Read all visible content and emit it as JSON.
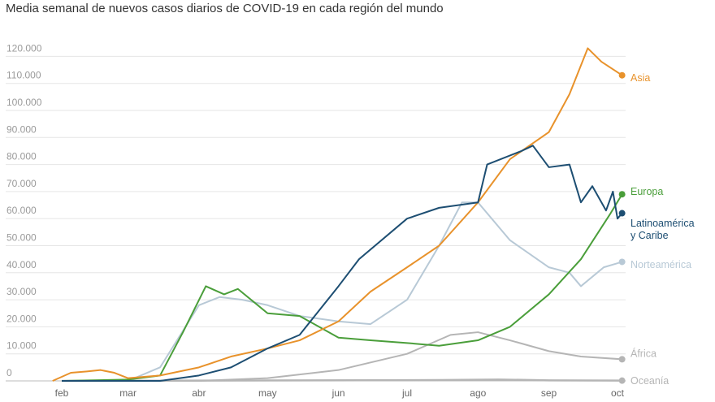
{
  "chart_data": {
    "type": "line",
    "title": "Media semanal de nuevos casos diarios de COVID-19 en cada región del mundo",
    "xlabel": "",
    "ylabel": "",
    "ylim": [
      0,
      125000
    ],
    "yticks": [
      0,
      10000,
      20000,
      30000,
      40000,
      50000,
      60000,
      70000,
      80000,
      90000,
      100000,
      110000,
      120000
    ],
    "ytick_labels": [
      "0",
      "10.000",
      "20.000",
      "30.000",
      "40.000",
      "50.000",
      "60.000",
      "70.000",
      "80.000",
      "90.000",
      "100.000",
      "110.000",
      "120.000"
    ],
    "xtick_labels": [
      "feb",
      "mar",
      "abr",
      "may",
      "jun",
      "jul",
      "ago",
      "sep",
      "oct"
    ],
    "xticks": [
      "2020-02-01",
      "2020-03-01",
      "2020-04-01",
      "2020-05-01",
      "2020-06-01",
      "2020-07-01",
      "2020-08-01",
      "2020-09-01",
      "2020-10-01"
    ],
    "grid": true,
    "legend": "end-of-line labels",
    "series": [
      {
        "name": "Asia",
        "color": "#e8922b",
        "points": [
          [
            "2020-01-28",
            0
          ],
          [
            "2020-02-05",
            3000
          ],
          [
            "2020-02-12",
            3500
          ],
          [
            "2020-02-18",
            4000
          ],
          [
            "2020-02-24",
            3000
          ],
          [
            "2020-03-01",
            1000
          ],
          [
            "2020-03-15",
            2000
          ],
          [
            "2020-04-01",
            5000
          ],
          [
            "2020-04-15",
            9000
          ],
          [
            "2020-05-01",
            12000
          ],
          [
            "2020-05-15",
            15000
          ],
          [
            "2020-06-01",
            22000
          ],
          [
            "2020-06-15",
            33000
          ],
          [
            "2020-07-01",
            42000
          ],
          [
            "2020-07-15",
            50000
          ],
          [
            "2020-08-01",
            66000
          ],
          [
            "2020-08-15",
            82000
          ],
          [
            "2020-09-01",
            92000
          ],
          [
            "2020-09-10",
            106000
          ],
          [
            "2020-09-18",
            123000
          ],
          [
            "2020-09-24",
            118000
          ],
          [
            "2020-10-03",
            113000
          ]
        ]
      },
      {
        "name": "Europa",
        "color": "#4a9e3a",
        "points": [
          [
            "2020-02-01",
            0
          ],
          [
            "2020-03-01",
            500
          ],
          [
            "2020-03-15",
            2000
          ],
          [
            "2020-03-25",
            18000
          ],
          [
            "2020-04-04",
            35000
          ],
          [
            "2020-04-12",
            32000
          ],
          [
            "2020-04-18",
            34000
          ],
          [
            "2020-05-01",
            25000
          ],
          [
            "2020-05-15",
            24000
          ],
          [
            "2020-06-01",
            16000
          ],
          [
            "2020-06-15",
            15000
          ],
          [
            "2020-07-01",
            14000
          ],
          [
            "2020-07-15",
            13000
          ],
          [
            "2020-08-01",
            15000
          ],
          [
            "2020-08-15",
            20000
          ],
          [
            "2020-09-01",
            32000
          ],
          [
            "2020-09-15",
            45000
          ],
          [
            "2020-09-28",
            62000
          ],
          [
            "2020-10-03",
            69000
          ]
        ]
      },
      {
        "name": "Latinoamérica y Caribe",
        "color": "#1d4e72",
        "points": [
          [
            "2020-02-01",
            0
          ],
          [
            "2020-03-15",
            0
          ],
          [
            "2020-04-01",
            2000
          ],
          [
            "2020-04-15",
            5000
          ],
          [
            "2020-05-01",
            12000
          ],
          [
            "2020-05-15",
            17000
          ],
          [
            "2020-06-01",
            35000
          ],
          [
            "2020-06-10",
            45000
          ],
          [
            "2020-07-01",
            60000
          ],
          [
            "2020-07-15",
            64000
          ],
          [
            "2020-08-01",
            66000
          ],
          [
            "2020-08-05",
            80000
          ],
          [
            "2020-08-20",
            85000
          ],
          [
            "2020-08-25",
            87000
          ],
          [
            "2020-09-01",
            79000
          ],
          [
            "2020-09-10",
            80000
          ],
          [
            "2020-09-15",
            66000
          ],
          [
            "2020-09-20",
            72000
          ],
          [
            "2020-09-26",
            63000
          ],
          [
            "2020-09-29",
            70000
          ],
          [
            "2020-10-01",
            60000
          ],
          [
            "2020-10-03",
            62000
          ]
        ]
      },
      {
        "name": "Norteamérica",
        "color": "#b8c9d6",
        "points": [
          [
            "2020-02-01",
            0
          ],
          [
            "2020-03-01",
            0
          ],
          [
            "2020-03-15",
            5000
          ],
          [
            "2020-04-01",
            28000
          ],
          [
            "2020-04-10",
            31000
          ],
          [
            "2020-04-20",
            30000
          ],
          [
            "2020-05-01",
            28000
          ],
          [
            "2020-05-15",
            24000
          ],
          [
            "2020-06-01",
            22000
          ],
          [
            "2020-06-15",
            21000
          ],
          [
            "2020-07-01",
            30000
          ],
          [
            "2020-07-15",
            50000
          ],
          [
            "2020-07-25",
            66000
          ],
          [
            "2020-08-01",
            66000
          ],
          [
            "2020-08-15",
            52000
          ],
          [
            "2020-09-01",
            42000
          ],
          [
            "2020-09-10",
            40000
          ],
          [
            "2020-09-15",
            35000
          ],
          [
            "2020-09-25",
            42000
          ],
          [
            "2020-10-03",
            44000
          ]
        ]
      },
      {
        "name": "África",
        "color": "#b5b5b5",
        "points": [
          [
            "2020-02-01",
            0
          ],
          [
            "2020-04-01",
            0
          ],
          [
            "2020-05-01",
            1000
          ],
          [
            "2020-06-01",
            4000
          ],
          [
            "2020-07-01",
            10000
          ],
          [
            "2020-07-20",
            17000
          ],
          [
            "2020-08-01",
            18000
          ],
          [
            "2020-08-15",
            15000
          ],
          [
            "2020-09-01",
            11000
          ],
          [
            "2020-09-15",
            9000
          ],
          [
            "2020-10-03",
            8000
          ]
        ]
      },
      {
        "name": "Oceanía",
        "color": "#b5b5b5",
        "points": [
          [
            "2020-02-01",
            0
          ],
          [
            "2020-07-15",
            300
          ],
          [
            "2020-08-10",
            500
          ],
          [
            "2020-09-01",
            200
          ],
          [
            "2020-10-03",
            100
          ]
        ]
      }
    ]
  }
}
